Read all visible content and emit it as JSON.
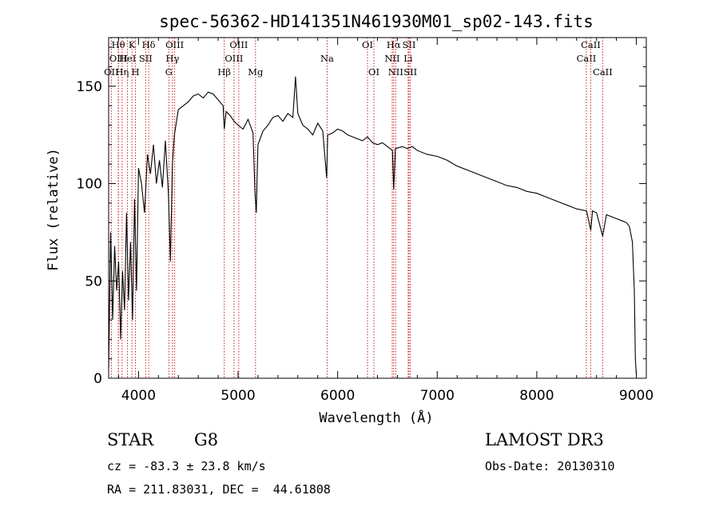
{
  "chart_data": {
    "type": "line",
    "title": "spec-56362-HD141351N461930M01_sp02-143.fits",
    "xlabel": "Wavelength (Å)",
    "ylabel": "Flux (relative)",
    "xlim": [
      3700,
      9100
    ],
    "ylim": [
      0,
      175
    ],
    "xticks": [
      4000,
      5000,
      6000,
      7000,
      8000,
      9000
    ],
    "yticks": [
      0,
      50,
      100,
      150
    ],
    "xtick_labels": [
      "4000",
      "5000",
      "6000",
      "7000",
      "8000",
      "9000"
    ],
    "ytick_labels": [
      "0",
      "50",
      "100",
      "150"
    ],
    "series": [
      {
        "name": "flux",
        "x": [
          3700,
          3720,
          3740,
          3760,
          3780,
          3800,
          3820,
          3840,
          3860,
          3880,
          3900,
          3920,
          3940,
          3960,
          3980,
          4000,
          4030,
          4060,
          4090,
          4120,
          4150,
          4180,
          4210,
          4240,
          4270,
          4300,
          4320,
          4340,
          4360,
          4400,
          4450,
          4500,
          4550,
          4600,
          4650,
          4700,
          4750,
          4800,
          4850,
          4861,
          4880,
          4920,
          4960,
          5000,
          5050,
          5100,
          5150,
          5170,
          5183,
          5200,
          5250,
          5300,
          5350,
          5400,
          5450,
          5500,
          5550,
          5577,
          5600,
          5650,
          5700,
          5750,
          5800,
          5850,
          5890,
          5900,
          5950,
          6000,
          6050,
          6100,
          6150,
          6200,
          6250,
          6300,
          6350,
          6400,
          6450,
          6500,
          6550,
          6563,
          6580,
          6650,
          6700,
          6750,
          6800,
          6900,
          7000,
          7100,
          7200,
          7300,
          7400,
          7500,
          7600,
          7700,
          7800,
          7900,
          8000,
          8100,
          8200,
          8300,
          8400,
          8500,
          8542,
          8560,
          8600,
          8662,
          8700,
          8750,
          8800,
          8850,
          8900,
          8930,
          8960,
          8980,
          8990,
          9000
        ],
        "values": [
          5,
          75,
          30,
          68,
          45,
          60,
          20,
          55,
          35,
          85,
          40,
          70,
          30,
          92,
          45,
          108,
          100,
          85,
          115,
          105,
          120,
          100,
          112,
          98,
          122,
          95,
          60,
          110,
          125,
          138,
          140,
          142,
          145,
          146,
          144,
          147,
          146,
          143,
          140,
          128,
          137,
          135,
          132,
          130,
          128,
          133,
          126,
          95,
          85,
          120,
          127,
          130,
          134,
          135,
          132,
          136,
          134,
          155,
          136,
          130,
          128,
          125,
          131,
          127,
          103,
          125,
          126,
          128,
          127,
          125,
          124,
          123,
          122,
          124,
          121,
          120,
          121,
          119,
          117,
          97,
          118,
          119,
          118,
          119,
          117,
          115,
          114,
          112,
          109,
          107,
          105,
          103,
          101,
          99,
          98,
          96,
          95,
          93,
          91,
          89,
          87,
          86,
          76,
          86,
          85,
          73,
          84,
          83,
          82,
          81,
          80,
          78,
          70,
          45,
          10,
          2
        ]
      }
    ],
    "spectral_lines": [
      {
        "label": "OII",
        "x": 3727,
        "row": 2
      },
      {
        "label": "Hθ",
        "x": 3797,
        "row": 0
      },
      {
        "label": "OIII",
        "x": 3799,
        "row": 1
      },
      {
        "label": "Hη",
        "x": 3835,
        "row": 2
      },
      {
        "label": "HeI",
        "x": 3889,
        "row": 1
      },
      {
        "label": "K",
        "x": 3934,
        "row": 0
      },
      {
        "label": "H",
        "x": 3969,
        "row": 2
      },
      {
        "label": "SII",
        "x": 4072,
        "row": 1
      },
      {
        "label": "Hδ",
        "x": 4102,
        "row": 0
      },
      {
        "label": "G",
        "x": 4305,
        "row": 2
      },
      {
        "label": "Hγ",
        "x": 4341,
        "row": 1
      },
      {
        "label": "OIII",
        "x": 4363,
        "row": 0
      },
      {
        "label": "Hβ",
        "x": 4861,
        "row": 2
      },
      {
        "label": "OIII",
        "x": 4959,
        "row": 1
      },
      {
        "label": "OIII",
        "x": 5007,
        "row": 0
      },
      {
        "label": "Mg",
        "x": 5175,
        "row": 2
      },
      {
        "label": "Na",
        "x": 5894,
        "row": 1
      },
      {
        "label": "OI",
        "x": 6300,
        "row": 0
      },
      {
        "label": "OI",
        "x": 6364,
        "row": 2
      },
      {
        "label": "NII",
        "x": 6548,
        "row": 1
      },
      {
        "label": "Hα",
        "x": 6563,
        "row": 0
      },
      {
        "label": "NII",
        "x": 6583,
        "row": 2
      },
      {
        "label": "Li",
        "x": 6708,
        "row": 1
      },
      {
        "label": "SII",
        "x": 6717,
        "row": 0
      },
      {
        "label": "SII",
        "x": 6731,
        "row": 2
      },
      {
        "label": "CaII",
        "x": 8498,
        "row": 1
      },
      {
        "label": "CaII",
        "x": 8542,
        "row": 0
      },
      {
        "label": "CaII",
        "x": 8662,
        "row": 2
      }
    ]
  },
  "info": {
    "object_class": "STAR",
    "subclass": "G8",
    "survey": "LAMOST DR3",
    "redshift_line": "cz = -83.3 ± 23.8 km/s",
    "obs_date_line": "Obs-Date: 20130310",
    "coords_line": "RA = 211.83031, DEC =  44.61808"
  }
}
